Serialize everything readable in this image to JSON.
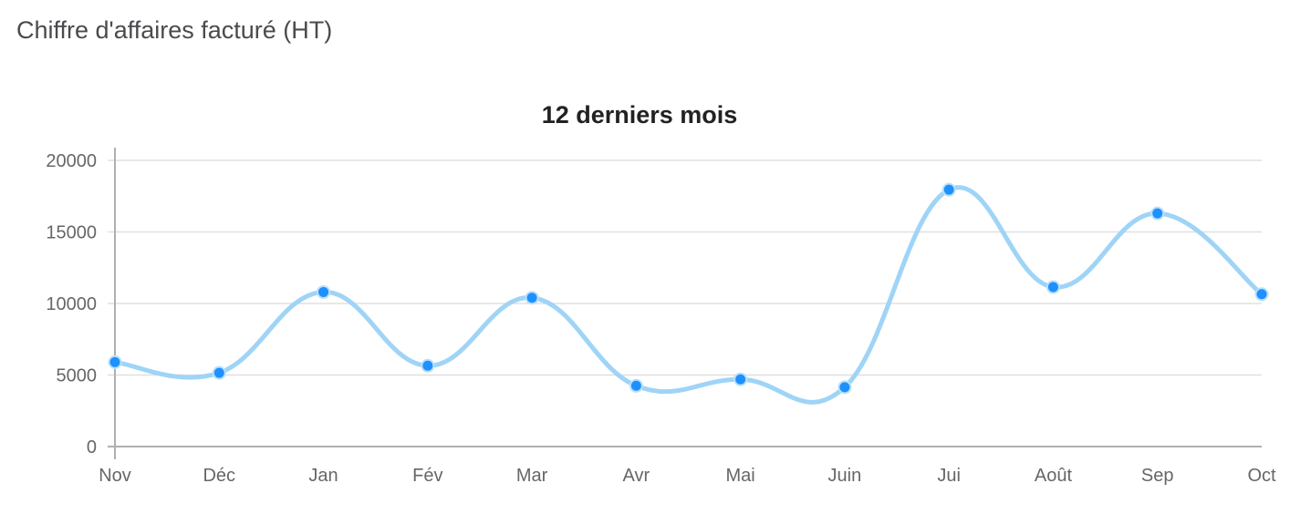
{
  "page": {
    "heading": "Chiffre d'affaires facturé (HT)"
  },
  "colors": {
    "line": "#9fd4f7",
    "point": "#1e90ff",
    "grid": "#e0e0e0",
    "axis": "#b0b0b0",
    "tick_text": "#666666",
    "title_text": "#222222"
  },
  "chart_data": {
    "type": "line",
    "title": "12 derniers mois",
    "xlabel": "",
    "ylabel": "",
    "categories": [
      "Nov",
      "Déc",
      "Jan",
      "Fév",
      "Mar",
      "Avr",
      "Mai",
      "Juin",
      "Jui",
      "Août",
      "Sep",
      "Oct"
    ],
    "series": [
      {
        "name": "Chiffre d'affaires facturé (HT)",
        "values": [
          5900,
          5150,
          10800,
          5650,
          10400,
          4250,
          4700,
          4150,
          17950,
          11150,
          16300,
          10650
        ]
      }
    ],
    "yticks": [
      0,
      5000,
      10000,
      15000,
      20000
    ],
    "ylim": [
      0,
      20000
    ],
    "grid": true,
    "legend": "none",
    "smooth": true
  }
}
